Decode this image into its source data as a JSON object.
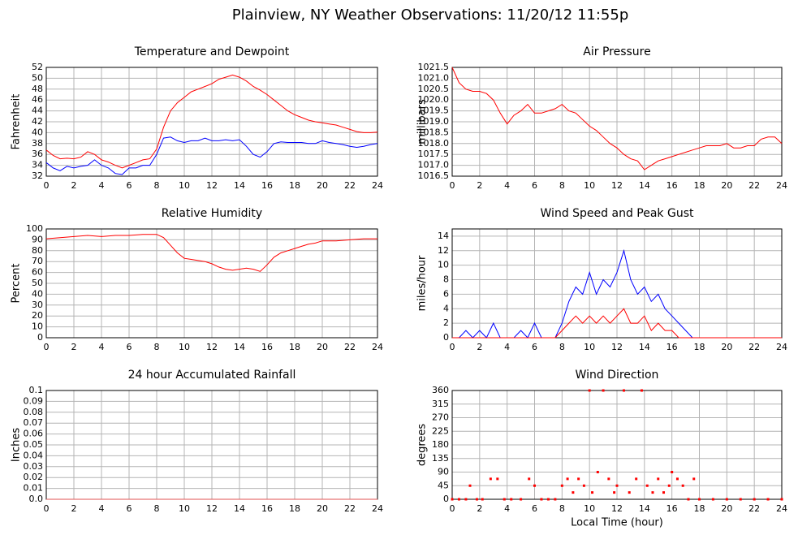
{
  "title": "Plainview, NY Weather Observations: 11/20/12 11:55p",
  "chart_data": [
    {
      "type": "line",
      "title": "Temperature and Dewpoint",
      "ylabel": "Fahrenheit",
      "xlim": [
        0,
        24
      ],
      "xticks": [
        0,
        2,
        4,
        6,
        8,
        10,
        12,
        14,
        16,
        18,
        20,
        22,
        24
      ],
      "ylim": [
        32,
        52
      ],
      "yticks": [
        32,
        34,
        36,
        38,
        40,
        42,
        44,
        46,
        48,
        50,
        52
      ],
      "grid": true,
      "x": [
        0,
        0.5,
        1,
        1.5,
        2,
        2.5,
        3,
        3.5,
        4,
        4.5,
        5,
        5.5,
        6,
        6.5,
        7,
        7.5,
        8,
        8.5,
        9,
        9.5,
        10,
        10.5,
        11,
        11.5,
        12,
        12.5,
        13,
        13.5,
        14,
        14.5,
        15,
        15.5,
        16,
        16.5,
        17,
        17.5,
        18,
        18.5,
        19,
        19.5,
        20,
        20.5,
        21,
        21.5,
        22,
        22.5,
        23,
        23.5,
        24
      ],
      "series": [
        {
          "color": "#ff0000",
          "values": [
            36.8,
            35.8,
            35.2,
            35.3,
            35.2,
            35.5,
            36.5,
            36,
            35,
            34.6,
            34,
            33.5,
            34,
            34.5,
            35,
            35.2,
            37,
            41,
            44,
            45.5,
            46.5,
            47.5,
            48,
            48.5,
            49,
            49.8,
            50.2,
            50.6,
            50.2,
            49.5,
            48.5,
            47.8,
            47,
            46,
            45,
            44,
            43.3,
            42.8,
            42.3,
            42,
            41.8,
            41.6,
            41.4,
            41,
            40.6,
            40.2,
            40,
            40,
            40.1
          ]
        },
        {
          "color": "#0000ff",
          "values": [
            34.5,
            33.5,
            33,
            33.8,
            33.5,
            33.8,
            34,
            35,
            34,
            33.5,
            32.5,
            32.3,
            33.5,
            33.5,
            34,
            34,
            36,
            39,
            39.2,
            38.5,
            38.2,
            38.5,
            38.5,
            39,
            38.5,
            38.5,
            38.7,
            38.5,
            38.7,
            37.5,
            36,
            35.5,
            36.5,
            38,
            38.3,
            38.2,
            38.2,
            38.2,
            38,
            38,
            38.5,
            38.2,
            38,
            37.8,
            37.5,
            37.3,
            37.5,
            37.8,
            38
          ]
        }
      ]
    },
    {
      "type": "line",
      "title": "Air Pressure",
      "ylabel": "millibars",
      "xlim": [
        0,
        24
      ],
      "xticks": [
        0,
        2,
        4,
        6,
        8,
        10,
        12,
        14,
        16,
        18,
        20,
        22,
        24
      ],
      "ylim": [
        1016.5,
        1021.5
      ],
      "yticks": [
        1016.5,
        {
          "value": 1017,
          "label": "1017.0"
        },
        1017.5,
        {
          "value": 1018,
          "label": "1018.0"
        },
        1018.5,
        {
          "value": 1019,
          "label": "1019.0"
        },
        1019.5,
        {
          "value": 1020,
          "label": "1020.0"
        },
        1020.5,
        {
          "value": 1021,
          "label": "1021.0"
        },
        1021.5
      ],
      "grid": true,
      "color": "#ff0000",
      "x": [
        0,
        0.5,
        1,
        1.5,
        2,
        2.5,
        3,
        3.5,
        4,
        4.5,
        5,
        5.5,
        6,
        6.5,
        7,
        7.5,
        8,
        8.5,
        9,
        9.5,
        10,
        10.5,
        11,
        11.5,
        12,
        12.5,
        13,
        13.5,
        14,
        14.5,
        15,
        15.5,
        16,
        16.5,
        17,
        17.5,
        18,
        18.5,
        19,
        19.5,
        20,
        20.5,
        21,
        21.5,
        22,
        22.5,
        23,
        23.5,
        24
      ],
      "values": [
        1021.5,
        1020.8,
        1020.5,
        1020.4,
        1020.4,
        1020.3,
        1020,
        1019.4,
        1018.9,
        1019.3,
        1019.5,
        1019.8,
        1019.4,
        1019.4,
        1019.5,
        1019.6,
        1019.8,
        1019.5,
        1019.4,
        1019.1,
        1018.8,
        1018.6,
        1018.3,
        1018,
        1017.8,
        1017.5,
        1017.3,
        1017.2,
        1016.8,
        1017,
        1017.2,
        1017.3,
        1017.4,
        1017.5,
        1017.6,
        1017.7,
        1017.8,
        1017.9,
        1017.9,
        1017.9,
        1018,
        1017.8,
        1017.8,
        1017.9,
        1017.9,
        1018.2,
        1018.3,
        1018.3,
        1018
      ]
    },
    {
      "type": "line",
      "title": "Relative Humidity",
      "ylabel": "Percent",
      "xlim": [
        0,
        24
      ],
      "xticks": [
        0,
        2,
        4,
        6,
        8,
        10,
        12,
        14,
        16,
        18,
        20,
        22,
        24
      ],
      "ylim": [
        0,
        100
      ],
      "yticks": [
        0,
        10,
        20,
        30,
        40,
        50,
        60,
        70,
        80,
        90,
        100
      ],
      "grid": true,
      "color": "#ff0000",
      "x": [
        0,
        1,
        2,
        3,
        4,
        5,
        6,
        7,
        8,
        8.5,
        9,
        9.5,
        10,
        10.5,
        11,
        11.5,
        12,
        12.5,
        13,
        13.5,
        14,
        14.5,
        15,
        15.5,
        16,
        16.5,
        17,
        17.5,
        18,
        18.5,
        19,
        19.5,
        20,
        21,
        22,
        23,
        24
      ],
      "values": [
        91,
        92,
        93,
        94,
        93,
        94,
        94,
        95,
        95,
        92,
        85,
        78,
        73,
        72,
        71,
        70,
        68,
        65,
        63,
        62,
        63,
        64,
        63,
        61,
        67,
        74,
        78,
        80,
        82,
        84,
        86,
        87,
        89,
        89,
        90,
        91,
        91
      ]
    },
    {
      "type": "line",
      "title": "Wind Speed and Peak Gust",
      "ylabel": "miles/hour",
      "xlim": [
        0,
        24
      ],
      "xticks": [
        0,
        2,
        4,
        6,
        8,
        10,
        12,
        14,
        16,
        18,
        20,
        22,
        24
      ],
      "ylim": [
        0,
        15
      ],
      "yticks": [
        0,
        2,
        4,
        6,
        8,
        10,
        12,
        14
      ],
      "grid": true,
      "x": [
        0,
        0.5,
        1,
        1.5,
        2,
        2.5,
        3,
        3.5,
        4,
        4.5,
        5,
        5.5,
        6,
        6.5,
        7,
        7.5,
        8,
        8.5,
        9,
        9.5,
        10,
        10.5,
        11,
        11.5,
        12,
        12.5,
        13,
        13.5,
        14,
        14.5,
        15,
        15.5,
        16,
        16.5,
        17,
        17.5,
        18,
        18.5,
        19,
        19.5,
        20,
        20.5,
        21,
        21.5,
        22,
        22.5,
        23,
        23.5,
        24
      ],
      "series": [
        {
          "color": "#0000ff",
          "values": [
            0,
            0,
            1,
            0,
            1,
            0,
            2,
            0,
            0,
            0,
            1,
            0,
            2,
            0,
            0,
            0,
            2,
            5,
            7,
            6,
            9,
            6,
            8,
            7,
            9,
            12,
            8,
            6,
            7,
            5,
            6,
            4,
            3,
            2,
            1,
            0,
            0,
            0,
            0,
            0,
            0,
            0,
            0,
            0,
            0,
            0,
            0,
            0,
            0
          ]
        },
        {
          "color": "#ff0000",
          "values": [
            0,
            0,
            0,
            0,
            0,
            0,
            0,
            0,
            0,
            0,
            0,
            0,
            0,
            0,
            0,
            0,
            1,
            2,
            3,
            2,
            3,
            2,
            3,
            2,
            3,
            4,
            2,
            2,
            3,
            1,
            2,
            1,
            1,
            0,
            0,
            0,
            0,
            0,
            0,
            0,
            0,
            0,
            0,
            0,
            0,
            0,
            0,
            0,
            0
          ]
        }
      ]
    },
    {
      "type": "line",
      "title": "24 hour Accumulated Rainfall",
      "ylabel": "Inches",
      "xlim": [
        0,
        24
      ],
      "xticks": [
        0,
        2,
        4,
        6,
        8,
        10,
        12,
        14,
        16,
        18,
        20,
        22,
        24
      ],
      "ylim": [
        0,
        0.1
      ],
      "yticks": [
        {
          "value": 0,
          "label": "0.0"
        },
        0.01,
        0.02,
        0.03,
        0.04,
        0.05,
        0.06,
        0.07,
        0.08,
        0.09,
        0.1
      ],
      "grid": true,
      "color": "#e05050",
      "x": [
        0,
        24
      ],
      "values": [
        0,
        0
      ]
    },
    {
      "type": "scatter",
      "title": "Wind Direction",
      "ylabel": "degrees",
      "xlabel": "Local Time (hour)",
      "xlim": [
        0,
        24
      ],
      "xticks": [
        0,
        2,
        4,
        6,
        8,
        10,
        12,
        14,
        16,
        18,
        20,
        22,
        24
      ],
      "ylim": [
        0,
        360
      ],
      "yticks": [
        0,
        45,
        90,
        135,
        180,
        225,
        270,
        315,
        360
      ],
      "grid": true,
      "color": "#ff0000",
      "x": [
        0,
        0.5,
        1,
        1.3,
        1.8,
        2.2,
        2.8,
        3.3,
        3.8,
        4.3,
        5,
        5.6,
        6,
        6.5,
        7,
        7.5,
        8,
        8.4,
        8.8,
        9.2,
        9.6,
        10,
        10.2,
        10.6,
        11,
        11.4,
        11.8,
        12,
        12.5,
        12.9,
        13.4,
        13.8,
        14.2,
        14.6,
        15,
        15.4,
        15.8,
        16,
        16.4,
        16.8,
        17.2,
        17.6,
        18,
        19,
        20,
        21,
        22,
        23,
        24
      ],
      "values": [
        0,
        0,
        0,
        45,
        0,
        0,
        67.5,
        67.5,
        0,
        0,
        0,
        67.5,
        45,
        0,
        0,
        0,
        45,
        67.5,
        22.5,
        67.5,
        45,
        360,
        22.5,
        90,
        360,
        67.5,
        22.5,
        45,
        360,
        22.5,
        67.5,
        360,
        45,
        22.5,
        67.5,
        22.5,
        45,
        90,
        67.5,
        45,
        0,
        67.5,
        0,
        0,
        0,
        0,
        0,
        0,
        0
      ]
    }
  ]
}
